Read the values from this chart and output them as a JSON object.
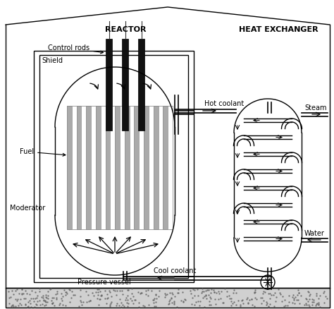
{
  "bg_color": "#ffffff",
  "line_color": "#000000",
  "title_reactor": "REACTOR",
  "title_heat": "HEAT EXCHANGER",
  "label_control": "Control rods",
  "label_shield": "Shield",
  "label_fuel": "Fuel",
  "label_moderator": "Moderator",
  "label_pressure": "Pressure vessel",
  "label_hot": "Hot coolant",
  "label_cool": "Cool coolant",
  "label_steam": "Steam",
  "label_water": "Water"
}
